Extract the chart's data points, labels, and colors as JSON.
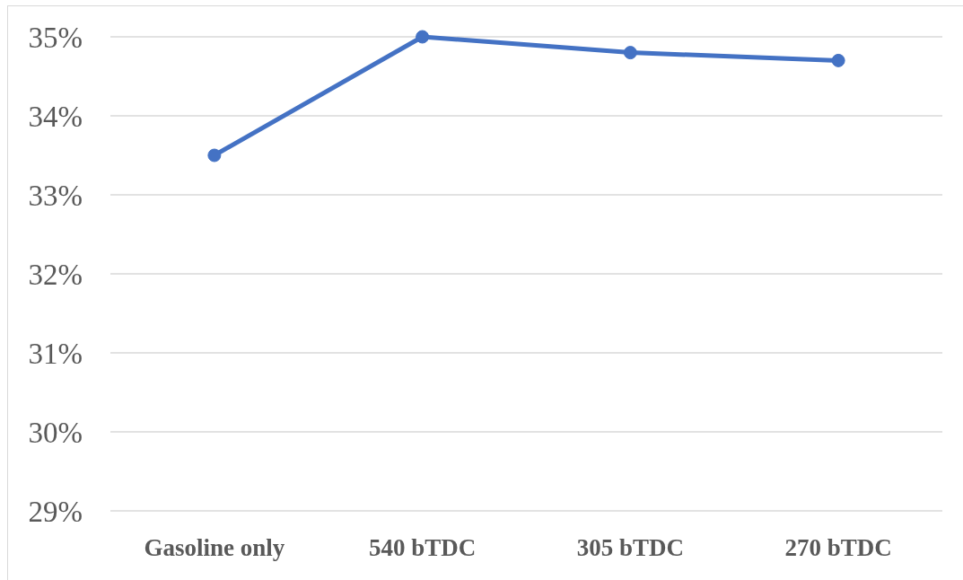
{
  "chart_data": {
    "type": "line",
    "categories": [
      "Gasoline only",
      "540 bTDC",
      "305 bTDC",
      "270 bTDC"
    ],
    "series": [
      {
        "color": "#4472c4",
        "values": [
          33.5,
          35.0,
          34.8,
          34.7
        ]
      }
    ],
    "ylim": [
      29,
      35
    ],
    "yticks": [
      {
        "value": 29,
        "label": "29%"
      },
      {
        "value": 30,
        "label": "30%"
      },
      {
        "value": 31,
        "label": "31%"
      },
      {
        "value": 32,
        "label": "32%"
      },
      {
        "value": 33,
        "label": "33%"
      },
      {
        "value": 34,
        "label": "34%"
      },
      {
        "value": 35,
        "label": "35%"
      }
    ],
    "grid": "y",
    "marker": "circle",
    "line_style": "solid"
  }
}
